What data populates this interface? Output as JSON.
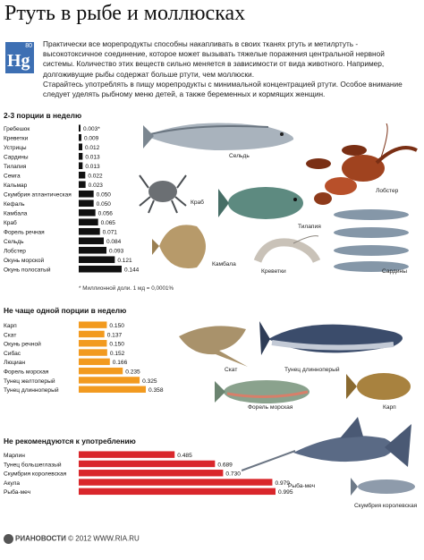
{
  "header": {
    "title": "Ртуть в рыбе и моллюсках",
    "element_symbol": "Hg",
    "element_number": "80"
  },
  "intro": {
    "paragraph1": "Практически все морепродукты способны накапливать в своих тканях ртуть и метилртуть - высокотоксичное соединение, которое может вызывать тяжелые поражения центральной нервной системы. Количество этих веществ сильно меняется в зависимости от вида животного. Например, долгоживущие рыбы содержат больше ртути, чем моллюски.",
    "paragraph2": "Старайтесь употреблять в пищу морепродукты с минимальной концентрацией ртути. Особое внимание следует уделять рыбному меню детей, а также беременных и кормящих женщин."
  },
  "chart_data": [
    {
      "type": "bar",
      "title": "2-3 порции в неделю",
      "color": "#111111",
      "footnote": "* Миллионной доли. 1 мд = 0,0001%",
      "categories": [
        "Гребешок",
        "Креветки",
        "Устрицы",
        "Сардины",
        "Тилапия",
        "Семга",
        "Кальмар",
        "Скумбрия атлантическая",
        "Кефаль",
        "Камбала",
        "Краб",
        "Форель речная",
        "Сельдь",
        "Лобстер",
        "Окунь морской",
        "Окунь полосатый"
      ],
      "values": [
        0.003,
        0.009,
        0.012,
        0.013,
        0.013,
        0.022,
        0.023,
        0.05,
        0.05,
        0.056,
        0.065,
        0.071,
        0.084,
        0.093,
        0.121,
        0.144
      ],
      "labels": [
        "0.003*",
        "0.009",
        "0.012",
        "0.013",
        "0.013",
        "0.022",
        "0.023",
        "0.050",
        "0.050",
        "0.056",
        "0.065",
        "0.071",
        "0.084",
        "0.093",
        "0.121",
        "0.144"
      ]
    },
    {
      "type": "bar",
      "title": "Не чаще одной порции в неделю",
      "color": "#f29a1f",
      "categories": [
        "Карп",
        "Скат",
        "Окунь речной",
        "Сибас",
        "Люциан",
        "Форель морская",
        "Тунец желтоперый",
        "Тунец длинноперый"
      ],
      "values": [
        0.15,
        0.137,
        0.15,
        0.152,
        0.166,
        0.235,
        0.325,
        0.358
      ],
      "labels": [
        "0.150",
        "0.137",
        "0.150",
        "0.152",
        "0.166",
        "0.235",
        "0.325",
        "0.358"
      ]
    },
    {
      "type": "bar",
      "title": "Не рекомендуются к употреблению",
      "color": "#d9262b",
      "categories": [
        "Марлин",
        "Тунец большеглазый",
        "Скумбрия королевская",
        "Акула",
        "Рыба-меч"
      ],
      "values": [
        0.485,
        0.689,
        0.73,
        0.979,
        0.995
      ],
      "labels": [
        "0.485",
        "0.689",
        "0.730",
        "0.979",
        "0.995"
      ]
    }
  ],
  "captions": {
    "herring": "Сельдь",
    "lobster": "Лобстер",
    "crab": "Краб",
    "tilapia": "Тилапия",
    "flounder": "Камбала",
    "shrimp": "Креветки",
    "sardines": "Сардины",
    "stingray": "Скат",
    "tuna_long": "Тунец длинноперый",
    "trout_sea": "Форель морская",
    "carp": "Карп",
    "swordfish": "Рыба-меч",
    "mackerel_king": "Скумбрия королевская"
  },
  "footer": {
    "brand": "РИАНОВОСТИ",
    "copyright": "© 2012 WWW.RIA.RU"
  },
  "colors": {
    "low": "#111111",
    "medium": "#f29a1f",
    "high": "#d9262b",
    "hg_tile": "#3d6fb3"
  }
}
